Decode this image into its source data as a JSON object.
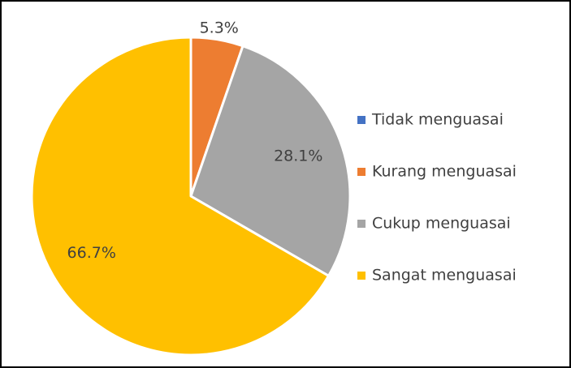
{
  "chart_data": {
    "type": "pie",
    "categories": [
      "Tidak menguasai",
      "Kurang menguasai",
      "Cukup menguasai",
      "Sangat menguasai"
    ],
    "values": [
      0,
      5.3,
      28.1,
      66.7
    ],
    "value_labels": [
      null,
      "5.3%",
      "28.1%",
      "66.7%"
    ],
    "colors": [
      "#4472c4",
      "#ed7d31",
      "#a5a5a5",
      "#ffc000"
    ],
    "legend": "right"
  }
}
